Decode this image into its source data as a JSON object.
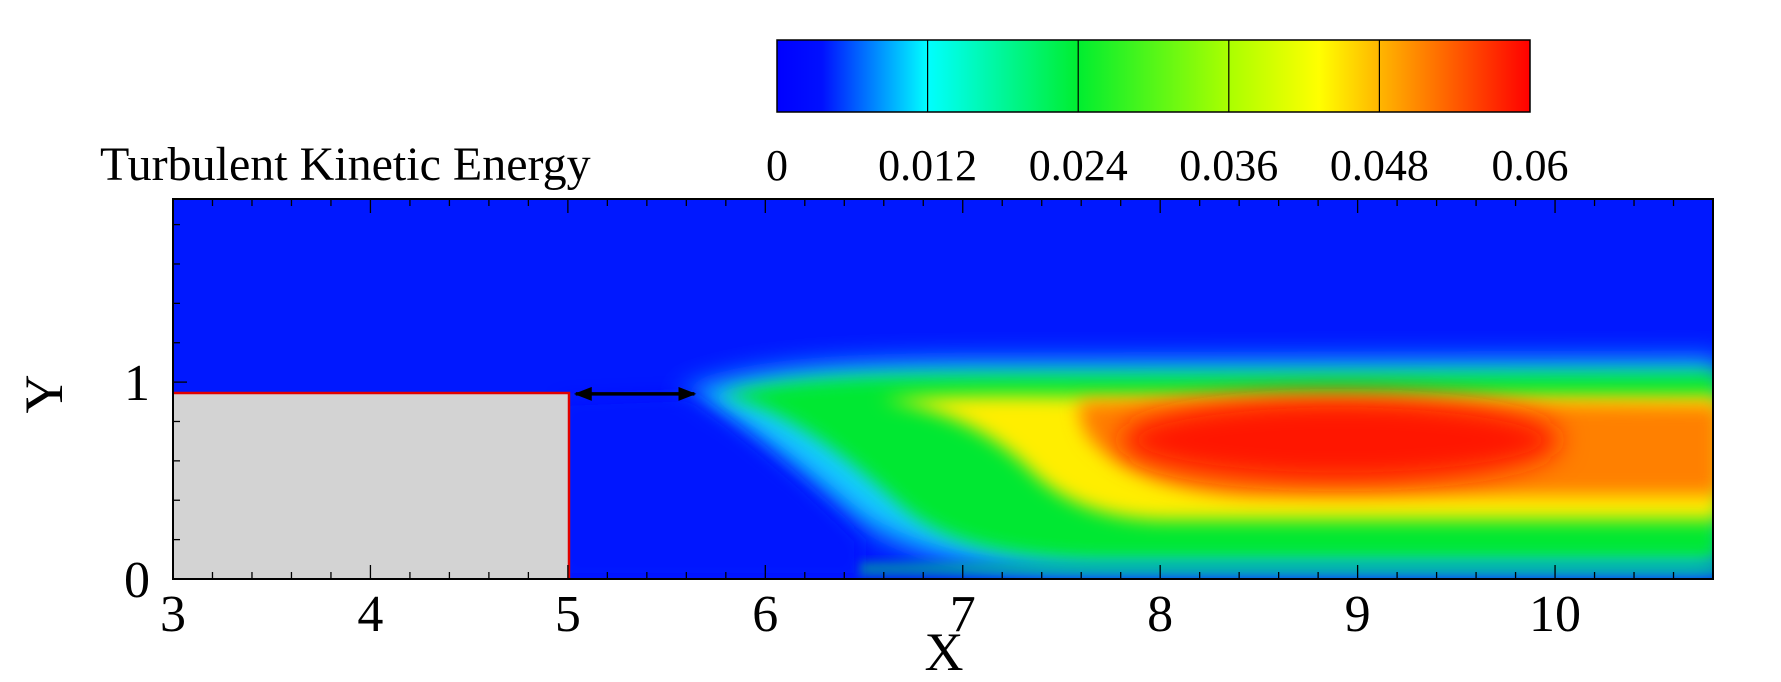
{
  "chart_data": {
    "type": "heatmap",
    "title": "",
    "colorbar": {
      "label": "Turbulent Kinetic Energy",
      "min": 0,
      "max": 0.06,
      "ticks": [
        0,
        0.012,
        0.024,
        0.036,
        0.048,
        0.06
      ],
      "tick_labels": [
        "0",
        "0.012",
        "0.024",
        "0.036",
        "0.048",
        "0.06"
      ],
      "colormap": [
        "#0000ff",
        "#00ffff",
        "#00ff00",
        "#ffff00",
        "#ff0000"
      ],
      "placement": "top"
    },
    "xlabel": "X",
    "ylabel": "Y",
    "xlim": [
      3,
      10.8
    ],
    "ylim": [
      0,
      1.93
    ],
    "x_ticks": [
      3,
      4,
      5,
      6,
      7,
      8,
      9,
      10
    ],
    "x_tick_labels": [
      "3",
      "4",
      "5",
      "6",
      "7",
      "8",
      "9",
      "10"
    ],
    "y_ticks": [
      0,
      1
    ],
    "y_tick_labels": [
      "0",
      "1"
    ],
    "step": {
      "x": [
        3,
        5
      ],
      "y": [
        0,
        0.94
      ],
      "fill": "#d3d3d3",
      "edge": "#e00000"
    },
    "annotation": {
      "type": "double-arrow",
      "from": [
        5.03,
        0.94
      ],
      "to": [
        5.58,
        0.94
      ]
    },
    "field_features": {
      "background_level": 0.002,
      "shear_layer_origin": [
        5.6,
        0.94
      ],
      "peak": {
        "x": 9.0,
        "y": 0.68,
        "value": 0.06
      }
    }
  }
}
